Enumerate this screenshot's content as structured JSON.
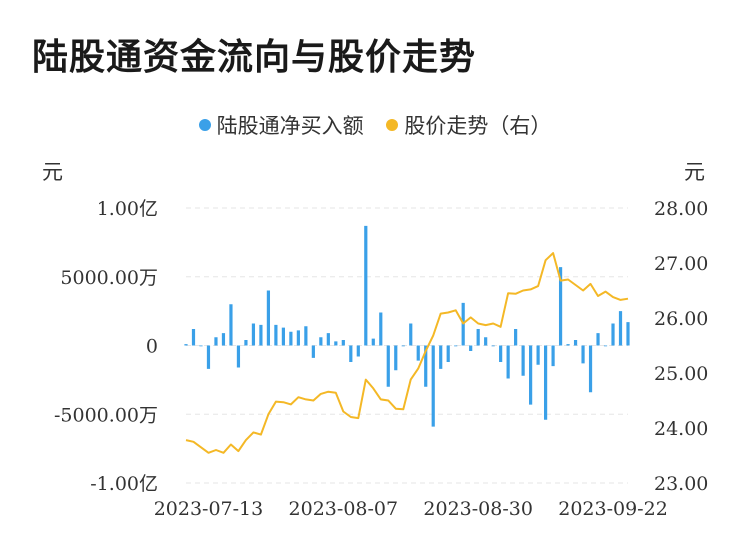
{
  "title": "陆股通资金流向与股价走势",
  "legend": [
    {
      "label": "陆股通净买入额",
      "color": "#3aa0e8"
    },
    {
      "label": "股价走势（右）",
      "color": "#f4b826"
    }
  ],
  "units": {
    "left": "元",
    "right": "元"
  },
  "chart_data": {
    "type": "bar+line",
    "title": "陆股通资金流向与股价走势",
    "y_left": {
      "unit": "元",
      "range": [
        -10000,
        10000
      ],
      "ticks": [
        {
          "value": 10000,
          "label": "1.00亿"
        },
        {
          "value": 5000,
          "label": "5000.00万"
        },
        {
          "value": 0,
          "label": "0"
        },
        {
          "value": -5000,
          "label": "-5000.00万"
        },
        {
          "value": -10000,
          "label": "-1.00亿"
        }
      ]
    },
    "y_right": {
      "unit": "元",
      "range": [
        23.0,
        28.0
      ],
      "ticks": [
        "28.00",
        "27.00",
        "26.00",
        "25.00",
        "24.00",
        "23.00"
      ]
    },
    "x_ticks": [
      {
        "index": 3,
        "label": "2023-07-13"
      },
      {
        "index": 21,
        "label": "2023-08-07"
      },
      {
        "index": 39,
        "label": "2023-08-30"
      },
      {
        "index": 57,
        "label": "2023-09-22"
      }
    ],
    "grid": true,
    "legend_position": "top-center",
    "series": [
      {
        "name": "陆股通净买入额",
        "type": "bar",
        "color": "#3aa0e8",
        "unit": "万元",
        "values": [
          100,
          1200,
          0,
          -1700,
          600,
          900,
          3000,
          -1600,
          400,
          1600,
          1500,
          4000,
          1500,
          1300,
          1000,
          1100,
          1400,
          -900,
          600,
          900,
          300,
          400,
          -1200,
          -800,
          8700,
          500,
          2400,
          -3000,
          -1800,
          0,
          1600,
          -1100,
          -3000,
          -5900,
          -1700,
          -1200,
          0,
          3100,
          -400,
          1200,
          600,
          0,
          -1200,
          -2400,
          1200,
          -2200,
          -4300,
          -1400,
          -5400,
          -1500,
          5700,
          100,
          400,
          -1300,
          -3400,
          900,
          0,
          1600,
          2500,
          1700
        ]
      },
      {
        "name": "股价走势（右）",
        "type": "line",
        "color": "#f4b826",
        "values": [
          23.78,
          23.75,
          23.65,
          23.55,
          23.6,
          23.55,
          23.7,
          23.58,
          23.78,
          23.92,
          23.88,
          24.25,
          24.48,
          24.47,
          24.43,
          24.56,
          24.52,
          24.5,
          24.62,
          24.66,
          24.64,
          24.3,
          24.2,
          24.18,
          24.88,
          24.72,
          24.52,
          24.5,
          24.35,
          24.34,
          24.88,
          25.08,
          25.4,
          25.68,
          26.08,
          26.1,
          26.14,
          25.9,
          26.01,
          25.9,
          25.87,
          25.9,
          25.84,
          26.45,
          26.44,
          26.5,
          26.52,
          26.58,
          27.05,
          27.18,
          26.68,
          26.7,
          26.6,
          26.5,
          26.62,
          26.4,
          26.48,
          26.38,
          26.33,
          26.35
        ]
      }
    ]
  }
}
